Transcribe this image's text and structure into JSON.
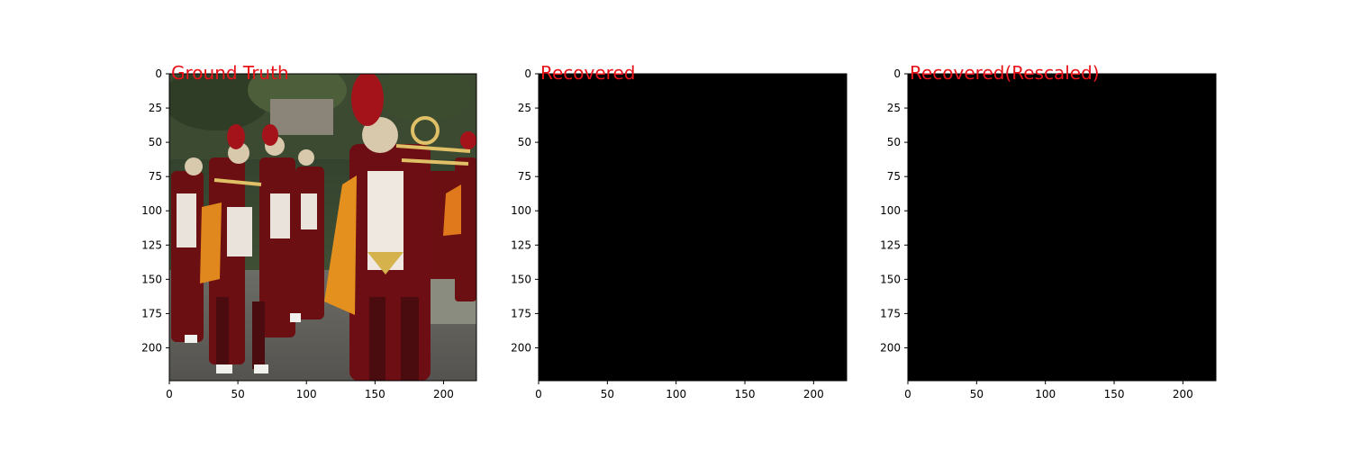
{
  "chart_data": [
    {
      "type": "image",
      "title": "Ground Truth",
      "content": "photo",
      "xlim": [
        0,
        224
      ],
      "ylim": [
        224,
        0
      ],
      "x_ticks": [
        0,
        50,
        100,
        150,
        200
      ],
      "y_ticks": [
        0,
        25,
        50,
        75,
        100,
        125,
        150,
        175,
        200
      ]
    },
    {
      "type": "image",
      "title": "Recovered",
      "content": "black",
      "xlim": [
        0,
        224
      ],
      "ylim": [
        224,
        0
      ],
      "x_ticks": [
        0,
        50,
        100,
        150,
        200
      ],
      "y_ticks": [
        0,
        25,
        50,
        75,
        100,
        125,
        150,
        175,
        200
      ]
    },
    {
      "type": "image",
      "title": "Recovered(Rescaled)",
      "content": "black",
      "xlim": [
        0,
        224
      ],
      "ylim": [
        224,
        0
      ],
      "x_ticks": [
        0,
        50,
        100,
        150,
        200
      ],
      "y_ticks": [
        0,
        25,
        50,
        75,
        100,
        125,
        150,
        175,
        200
      ]
    }
  ],
  "colors": {
    "title": "#e8141a",
    "black": "#000000"
  }
}
